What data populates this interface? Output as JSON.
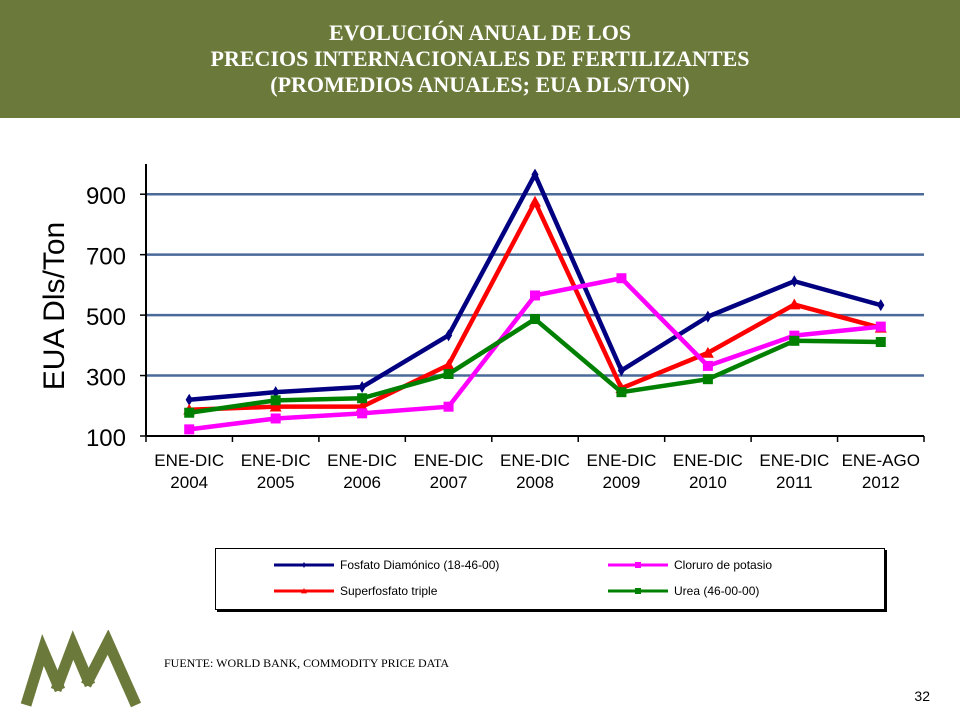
{
  "title": {
    "line1": "EVOLUCIÓN ANUAL DE LOS",
    "line2": "PRECIOS INTERNACIONALES DE FERTILIZANTES",
    "line3": "(PROMEDIOS ANUALES; EUA DLS/TON)"
  },
  "source": "FUENTE: WORLD BANK, COMMODITY PRICE DATA",
  "page_number": "32",
  "colors": {
    "header_bg": "#6b7a3a",
    "logo": "#6b7a3a",
    "grid": "#4a6a9a"
  },
  "chart_data": {
    "type": "line",
    "ylabel": "EUA Dls/Ton",
    "ylim": [
      100,
      1000
    ],
    "yticks": [
      100,
      300,
      500,
      700,
      900
    ],
    "grid": true,
    "legend_position": "bottom",
    "categories": [
      [
        "ENE-DIC",
        "2004"
      ],
      [
        "ENE-DIC",
        "2005"
      ],
      [
        "ENE-DIC",
        "2006"
      ],
      [
        "ENE-DIC",
        "2007"
      ],
      [
        "ENE-DIC",
        "2008"
      ],
      [
        "ENE-DIC",
        "2009"
      ],
      [
        "ENE-DIC",
        "2010"
      ],
      [
        "ENE-DIC",
        "2011"
      ],
      [
        "ENE-AGO",
        "2012"
      ]
    ],
    "series": [
      {
        "name": "Fosfato Diamónico (18-46-00)",
        "color": "#000080",
        "marker": "diamond",
        "values": [
          220,
          245,
          262,
          433,
          965,
          317,
          495,
          612,
          533
        ]
      },
      {
        "name": "Superfosfato triple",
        "color": "#ff0000",
        "marker": "triangle",
        "values": [
          187,
          197,
          197,
          335,
          875,
          258,
          375,
          535,
          458
        ]
      },
      {
        "name": "Cloruro de potasio",
        "color": "#ff00ff",
        "marker": "square",
        "values": [
          122,
          158,
          175,
          197,
          565,
          622,
          332,
          432,
          462
        ]
      },
      {
        "name": "Urea (46-00-00)",
        "color": "#008000",
        "marker": "square",
        "values": [
          177,
          218,
          225,
          305,
          487,
          245,
          288,
          415,
          411
        ]
      }
    ],
    "legend_order": [
      0,
      2,
      1,
      3
    ]
  }
}
